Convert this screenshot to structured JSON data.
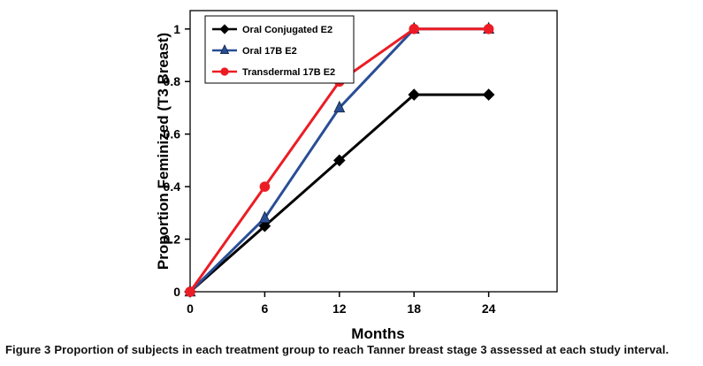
{
  "caption": {
    "label": "Figure 3",
    "text": "Proportion of subjects in each treatment group to reach Tanner breast stage 3 assessed at each study interval."
  },
  "chart_data": {
    "type": "line",
    "title": "",
    "xlabel": "Months",
    "ylabel": "Proportion Feminized (T3 Breast)",
    "x": [
      0,
      6,
      12,
      18,
      24
    ],
    "xticks": [
      0,
      6,
      12,
      18,
      24
    ],
    "yticks": [
      0,
      0.2,
      0.4,
      0.6,
      0.8,
      1
    ],
    "xlim": [
      0,
      29.5
    ],
    "ylim": [
      0,
      1.07
    ],
    "grid": false,
    "legend_position": "top-left-inside",
    "series": [
      {
        "name": "Oral Conjugated E2",
        "values": [
          0,
          0.25,
          0.5,
          0.75,
          0.75
        ],
        "color": "#000000",
        "marker": "diamond"
      },
      {
        "name": "Oral 17B E2",
        "values": [
          0,
          0.28,
          0.7,
          1,
          1
        ],
        "color": "#2A4E96",
        "marker": "triangle"
      },
      {
        "name": "Transdermal 17B E2",
        "values": [
          0,
          0.4,
          0.8,
          1,
          1
        ],
        "color": "#EC1C24",
        "marker": "circle"
      }
    ]
  }
}
